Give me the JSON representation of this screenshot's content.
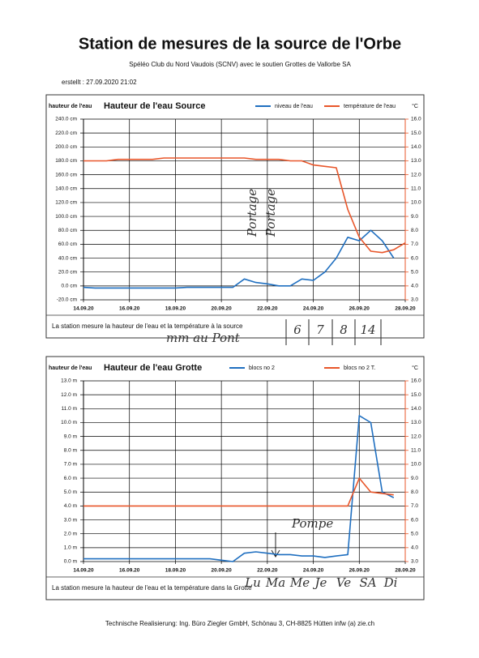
{
  "header": {
    "title": "Station de mesures de la source de l'Orbe",
    "subtitle": "Spéléo Club du Nord Vaudois (SCNV) avec le soutien Grottes de Vallorbe SA",
    "created": "erstellt :  27.09.2020 21:02"
  },
  "chart_data": [
    {
      "type": "line",
      "title": "Hauteur de l'eau Source",
      "y_label": "hauteur de l'eau",
      "y2_label": "°C",
      "caption": "La station mesure la hauteur de l'eau et la température à la source",
      "categories": [
        "14.09.20",
        null,
        null,
        null,
        "16.09.20",
        null,
        null,
        null,
        "18.09.20",
        null,
        null,
        null,
        "20.09.20",
        null,
        null,
        null,
        "22.09.20",
        null,
        null,
        null,
        "24.09.20",
        null,
        null,
        null,
        "26.09.20",
        null,
        null,
        null,
        "28.09.20"
      ],
      "series": [
        {
          "name": "niveau de l'eau",
          "color": "#1f6fc0",
          "values": [
            -2,
            -3,
            -3,
            -3,
            -3,
            -3,
            -3,
            -3,
            -3,
            -2,
            -2,
            -2,
            -2,
            -2,
            10,
            5,
            3,
            0,
            0,
            10,
            8,
            20,
            40,
            70,
            65,
            80,
            65,
            40,
            null
          ]
        },
        {
          "name": "température de l'eau",
          "color": "#e8562a",
          "axis": "y2",
          "values": [
            13.0,
            13.0,
            13.0,
            13.1,
            13.1,
            13.1,
            13.1,
            13.2,
            13.2,
            13.2,
            13.2,
            13.2,
            13.2,
            13.2,
            13.2,
            13.1,
            13.1,
            13.1,
            13.0,
            13.0,
            12.7,
            12.6,
            12.5,
            9.5,
            7.5,
            6.5,
            6.4,
            6.6,
            7.1
          ]
        }
      ],
      "ylim": [
        -20,
        240
      ],
      "yticks": [
        {
          "value": -20,
          "label": "-20.0 cm"
        },
        {
          "value": 0,
          "label": "0.0 cm"
        },
        {
          "value": 20,
          "label": "20.0 cm"
        },
        {
          "value": 40,
          "label": "40.0 cm"
        },
        {
          "value": 60,
          "label": "60.0 cm"
        },
        {
          "value": 80,
          "label": "80.0 cm"
        },
        {
          "value": 100,
          "label": "100.0 cm"
        },
        {
          "value": 120,
          "label": "120.0 cm"
        },
        {
          "value": 140,
          "label": "140.0 cm"
        },
        {
          "value": 160,
          "label": "160.0 cm"
        },
        {
          "value": 180,
          "label": "180.0 cm"
        },
        {
          "value": 200,
          "label": "200.0 cm"
        },
        {
          "value": 220,
          "label": "220.0 cm"
        },
        {
          "value": 240,
          "label": "240.0 cm"
        }
      ],
      "y2lim": [
        3,
        16
      ],
      "y2ticks": [
        {
          "value": 3,
          "label": "3.0"
        },
        {
          "value": 4,
          "label": "4.0"
        },
        {
          "value": 5,
          "label": "5.0"
        },
        {
          "value": 6,
          "label": "6.0"
        },
        {
          "value": 7,
          "label": "7.0"
        },
        {
          "value": 8,
          "label": "8.0"
        },
        {
          "value": 9,
          "label": "9.0"
        },
        {
          "value": 10,
          "label": "10.0"
        },
        {
          "value": 11,
          "label": "11.0"
        },
        {
          "value": 12,
          "label": "12.0"
        },
        {
          "value": 13,
          "label": "13.0"
        },
        {
          "value": 14,
          "label": "14.0"
        },
        {
          "value": 15,
          "label": "15.0"
        },
        {
          "value": 16,
          "label": "16.0"
        }
      ],
      "grid": true
    },
    {
      "type": "line",
      "title": "Hauteur de l'eau Grotte",
      "y_label": "hauteur de l'eau",
      "y2_label": "°C",
      "caption": "La station mesure la hauteur de l'eau et la température dans la Grotte",
      "categories": [
        "14.09.20",
        null,
        null,
        null,
        "16.09.20",
        null,
        null,
        null,
        "18.09.20",
        null,
        null,
        null,
        "20.09.20",
        null,
        null,
        null,
        "22.09.20",
        null,
        null,
        null,
        "24.09.20",
        null,
        null,
        null,
        "26.09.20",
        null,
        null,
        null,
        "28.09.20"
      ],
      "series": [
        {
          "name": "blocs no 2",
          "color": "#1f6fc0",
          "values": [
            0.2,
            0.2,
            0.2,
            0.2,
            0.2,
            0.2,
            0.2,
            0.2,
            0.2,
            0.2,
            0.2,
            0.2,
            0.1,
            0.0,
            0.6,
            0.7,
            0.6,
            0.5,
            0.5,
            0.4,
            0.4,
            0.3,
            0.4,
            0.5,
            10.5,
            10.0,
            5.0,
            4.6,
            null
          ]
        },
        {
          "name": "blocs no 2 T.",
          "color": "#e8562a",
          "axis": "y2",
          "values": [
            7.0,
            7.0,
            7.0,
            7.0,
            7.0,
            7.0,
            7.0,
            7.0,
            7.0,
            7.0,
            7.0,
            7.0,
            7.0,
            7.0,
            7.0,
            7.0,
            7.0,
            7.0,
            7.0,
            7.0,
            7.0,
            7.0,
            7.0,
            7.0,
            9.0,
            8.0,
            7.9,
            7.8,
            null
          ]
        }
      ],
      "ylim": [
        0,
        13
      ],
      "yticks": [
        {
          "value": 0,
          "label": "0.0 m"
        },
        {
          "value": 1,
          "label": "1.0 m"
        },
        {
          "value": 2,
          "label": "2.0 m"
        },
        {
          "value": 3,
          "label": "3.0 m"
        },
        {
          "value": 4,
          "label": "4.0 m"
        },
        {
          "value": 5,
          "label": "5.0 m"
        },
        {
          "value": 6,
          "label": "6.0 m"
        },
        {
          "value": 7,
          "label": "7.0 m"
        },
        {
          "value": 8,
          "label": "8.0 m"
        },
        {
          "value": 9,
          "label": "9.0 m"
        },
        {
          "value": 10,
          "label": "10.0 m"
        },
        {
          "value": 11,
          "label": "11.0 m"
        },
        {
          "value": 12,
          "label": "12.0 m"
        },
        {
          "value": 13,
          "label": "13.0 m"
        }
      ],
      "y2lim": [
        3,
        16
      ],
      "y2ticks": [
        {
          "value": 3,
          "label": "3.0"
        },
        {
          "value": 4,
          "label": "4.0"
        },
        {
          "value": 5,
          "label": "5.0"
        },
        {
          "value": 6,
          "label": "6.0"
        },
        {
          "value": 7,
          "label": "7.0"
        },
        {
          "value": 8,
          "label": "8.0"
        },
        {
          "value": 9,
          "label": "9.0"
        },
        {
          "value": 10,
          "label": "10.0"
        },
        {
          "value": 11,
          "label": "11.0"
        },
        {
          "value": 12,
          "label": "12.0"
        },
        {
          "value": 13,
          "label": "13.0"
        },
        {
          "value": 14,
          "label": "14.0"
        },
        {
          "value": 15,
          "label": "15.0"
        },
        {
          "value": 16,
          "label": "16.0"
        }
      ],
      "grid": true
    }
  ],
  "handwritten": {
    "portage_1": "Portage",
    "portage_2": "Portage",
    "pont": "mm au Pont",
    "numbers": [
      "6",
      "7",
      "8",
      "14"
    ],
    "pompe": "Pompe",
    "days": [
      "Lu",
      "Ma",
      "Me",
      "Je",
      "Ve",
      "SA",
      "Di"
    ]
  },
  "footer": "Technische Realisierung:  Ing. Büro Ziegler GmbH,  Schönau 3,  CH-8825 Hütten  infw (a) zie.ch"
}
